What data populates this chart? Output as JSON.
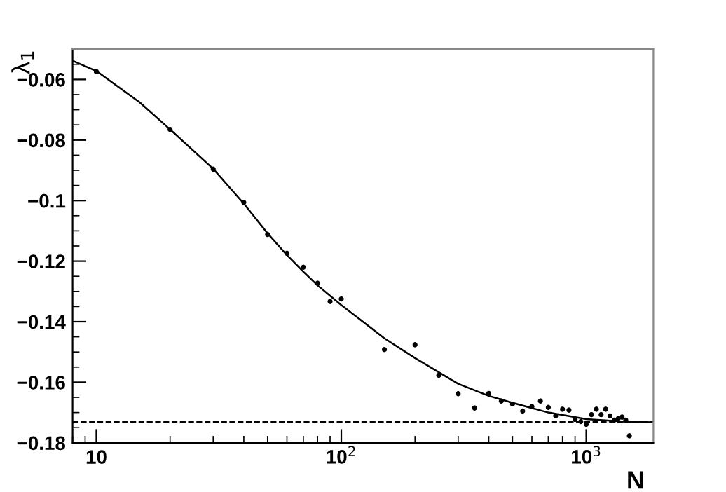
{
  "chart_data": {
    "type": "scatter",
    "xlabel": "N",
    "ylabel": "λ$_{1}$",
    "log": "x",
    "grid": false,
    "marker": "circle",
    "xlim": [
      8,
      1880
    ],
    "ylim": [
      -0.18,
      -0.05
    ],
    "xticks": [
      10,
      {
        "value": 100,
        "label": "10$^{2}$"
      },
      {
        "value": 1000,
        "label": "10$^{3}$"
      }
    ],
    "yticks": [
      -0.18,
      -0.16,
      -0.14,
      -0.12,
      -0.1,
      -0.08,
      -0.06
    ],
    "ref_lines": [
      {
        "axis": "y",
        "value": -0.1731,
        "line_style": "dashed",
        "color": "#000000"
      }
    ],
    "series": [
      {
        "color": "#000000",
        "x": [
          10,
          20,
          30,
          40,
          50,
          60,
          70,
          80,
          90,
          100,
          150,
          200,
          250,
          300,
          350,
          400,
          450,
          500,
          550,
          600,
          650,
          700,
          750,
          800,
          850,
          900,
          950,
          1000,
          1050,
          1100,
          1150,
          1200,
          1250,
          1300,
          1350,
          1400,
          1450,
          1500
        ],
        "values": [
          -0.0574,
          -0.0765,
          -0.0896,
          -0.1006,
          -0.1112,
          -0.1174,
          -0.122,
          -0.1273,
          -0.1333,
          -0.1325,
          -0.1492,
          -0.1476,
          -0.1577,
          -0.1638,
          -0.1685,
          -0.1637,
          -0.1662,
          -0.1672,
          -0.1695,
          -0.168,
          -0.1662,
          -0.1683,
          -0.1711,
          -0.1689,
          -0.1692,
          -0.1723,
          -0.173,
          -0.1739,
          -0.1707,
          -0.1689,
          -0.1707,
          -0.1689,
          -0.1711,
          -0.1725,
          -0.172,
          -0.1715,
          -0.1725,
          -0.1777
        ],
        "errors": [
          0.0008,
          0.0008,
          0.0008,
          0.0008,
          0.0008,
          0.0008,
          0.0008,
          0.0008,
          0.0008,
          0.0008,
          0.0008,
          0.0008,
          0.0008,
          0.0008,
          0.0008,
          0.0008,
          0.0008,
          0.0008,
          0.0008,
          0.0008,
          0.0008,
          0.0008,
          0.0008,
          0.0008,
          0.0008,
          0.0008,
          0.0008,
          0.0008,
          0.0008,
          0.0008,
          0.0008,
          0.0008,
          0.0008,
          0.0008,
          0.0008,
          0.0008,
          0.0008,
          0.0008
        ]
      },
      {
        "type": "line",
        "color": "#000000",
        "line_style": "solid",
        "marker": "none",
        "x": [
          8,
          10,
          15,
          20,
          30,
          40,
          50,
          60,
          70,
          80,
          100,
          150,
          200,
          300,
          400,
          500,
          700,
          1000,
          1500,
          1880
        ],
        "values": [
          -0.0538,
          -0.0572,
          -0.0675,
          -0.0765,
          -0.0895,
          -0.101,
          -0.1108,
          -0.118,
          -0.1235,
          -0.128,
          -0.1345,
          -0.1455,
          -0.152,
          -0.1605,
          -0.1645,
          -0.1668,
          -0.17,
          -0.1722,
          -0.1731,
          -0.1732
        ]
      }
    ]
  }
}
